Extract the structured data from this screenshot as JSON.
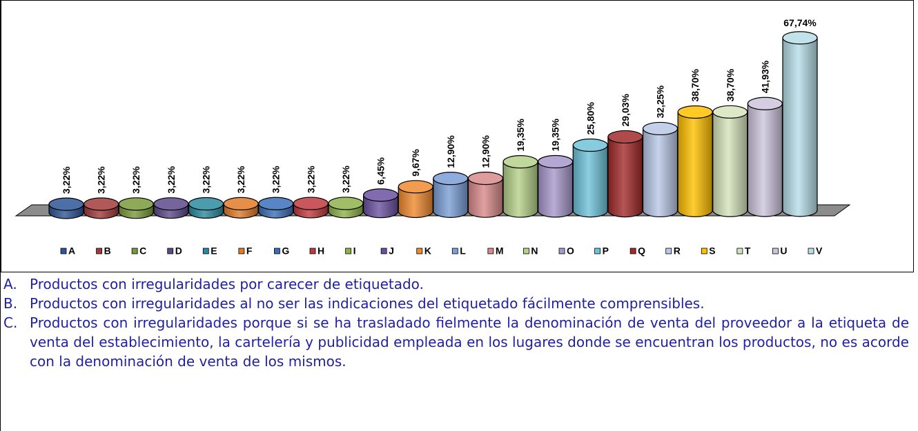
{
  "chart_data": {
    "type": "bar",
    "categories": [
      "A",
      "B",
      "C",
      "D",
      "E",
      "F",
      "G",
      "H",
      "I",
      "J",
      "K",
      "L",
      "M",
      "N",
      "O",
      "P",
      "Q",
      "R",
      "S",
      "T",
      "U",
      "V"
    ],
    "values": [
      3.22,
      3.22,
      3.22,
      3.22,
      3.22,
      3.22,
      3.22,
      3.22,
      3.22,
      6.45,
      9.67,
      12.9,
      12.9,
      19.35,
      19.35,
      25.8,
      29.03,
      32.25,
      38.7,
      38.7,
      41.93,
      67.74
    ],
    "value_labels": [
      "3,22%",
      "3,22%",
      "3,22%",
      "3,22%",
      "3,22%",
      "3,22%",
      "3,22%",
      "3,22%",
      "3,22%",
      "6,45%",
      "9,67%",
      "12,90%",
      "12,90%",
      "19,35%",
      "19,35%",
      "25,80%",
      "29,03%",
      "32,25%",
      "38,70%",
      "38,70%",
      "41,93%",
      "67,74%"
    ],
    "colors": [
      "#2e5597",
      "#a33a3a",
      "#7a9a3a",
      "#5e4a8a",
      "#2a8aa0",
      "#e07b28",
      "#3a6fb8",
      "#c0393e",
      "#8fb34a",
      "#6a52a0",
      "#f08a30",
      "#7b9fd6",
      "#d98a8a",
      "#b5d18a",
      "#a898cc",
      "#6fc3d9",
      "#a32a2a",
      "#b8c8e6",
      "#ffc000",
      "#d6e4bc",
      "#cdc5dd",
      "#b7dde8"
    ],
    "legend": "bottom"
  },
  "notes": [
    {
      "key": "A.",
      "text": "Productos con irregularidades por carecer de etiquetado."
    },
    {
      "key": "B.",
      "text": "Productos con irregularidades al no ser las indicaciones del etiquetado fácilmente comprensibles."
    },
    {
      "key": "C.",
      "text": "Productos con irregularidades porque si se ha trasladado fielmente la denominación de venta del proveedor a la etiqueta de venta del establecimiento, la cartelería y publicidad empleada en los lugares donde se encuentran los productos, no es acorde con la denominación de venta de los mismos."
    }
  ]
}
